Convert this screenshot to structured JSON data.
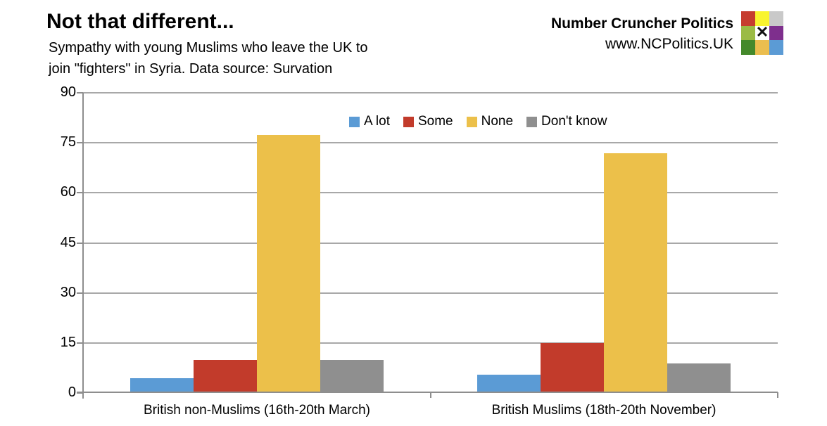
{
  "header": {
    "title": "Not that different...",
    "subtitle_line1": "Sympathy with young Muslims who leave the UK to",
    "subtitle_line2": "join \"fighters\" in Syria. Data source: Survation",
    "brand": {
      "name": "Number Cruncher Politics",
      "url_text": "www.NCPolitics.UK"
    }
  },
  "logo": {
    "grid_colors": [
      "#C63D2F",
      "#F9F42E",
      "#C9C9C9",
      "#9BBB45",
      "#FFFFFF",
      "#7E2F8D",
      "#44892B",
      "#EBBE4F",
      "#5B9BD5"
    ],
    "x_glyph": "✕",
    "x_cell_index": 4
  },
  "chart_data": {
    "type": "bar",
    "title": "Not that different...",
    "subtitle": "Sympathy with young Muslims who leave the UK to join \"fighters\" in Syria. Data source: Survation",
    "categories": [
      "British non-Muslims (16th-20th March)",
      "British Muslims (18th-20th November)"
    ],
    "series": [
      {
        "name": "A lot",
        "color": "#5B9BD5",
        "values": [
          4,
          5
        ]
      },
      {
        "name": "Some",
        "color": "#C23B2B",
        "values": [
          9.5,
          14.5
        ]
      },
      {
        "name": "None",
        "color": "#ECC04A",
        "values": [
          77,
          71.5
        ]
      },
      {
        "name": "Don't know",
        "color": "#8F8F8F",
        "values": [
          9.5,
          8.5
        ]
      }
    ],
    "ylim": [
      0,
      90
    ],
    "yticks": [
      0,
      15,
      30,
      45,
      60,
      75,
      90
    ],
    "grid": true,
    "legend_position": "top-center",
    "gridline_color": "#A8A8A8",
    "axis_color": "#8E8E8E"
  }
}
